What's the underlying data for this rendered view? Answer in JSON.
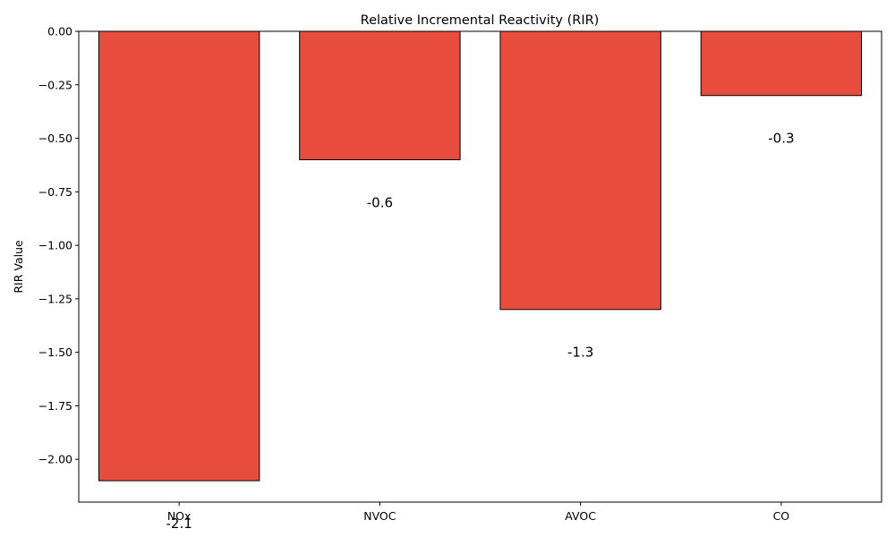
{
  "chart_data": {
    "type": "bar",
    "title": "Relative Incremental Reactivity (RIR)",
    "xlabel": "",
    "ylabel": "RIR Value",
    "categories": [
      "NOx",
      "NVOC",
      "AVOC",
      "CO"
    ],
    "values": [
      -2.1,
      -0.6,
      -1.3,
      -0.3
    ],
    "data_labels": [
      "-2.1",
      "-0.6",
      "-1.3",
      "-0.3"
    ],
    "ylim": [
      -2.2,
      0.0
    ],
    "yticks": [
      0.0,
      -0.25,
      -0.5,
      -0.75,
      -1.0,
      -1.25,
      -1.5,
      -1.75,
      -2.0
    ],
    "ytick_labels": [
      "0.00",
      "−0.25",
      "−0.50",
      "−0.75",
      "−1.00",
      "−1.25",
      "−1.50",
      "−1.75",
      "−2.00"
    ],
    "bar_color": "#e84c3d",
    "edge_color": "#000000",
    "grid": false,
    "legend": "none"
  }
}
